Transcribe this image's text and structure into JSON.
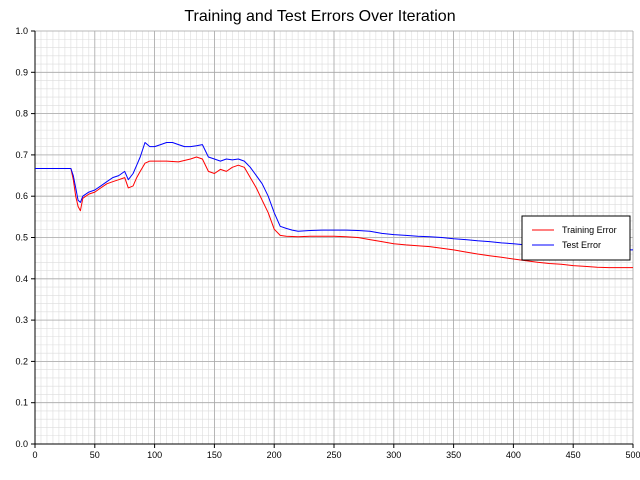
{
  "chart_data": {
    "type": "line",
    "title": "Training and Test Errors Over Iteration",
    "xlabel": "",
    "ylabel": "",
    "xlim": [
      0,
      500
    ],
    "ylim": [
      0.0,
      1.0
    ],
    "x_ticks": [
      "0",
      "50",
      "100",
      "150",
      "200",
      "250",
      "300",
      "350",
      "400",
      "450",
      "500"
    ],
    "y_ticks": [
      "0.0",
      "0.1",
      "0.2",
      "0.3",
      "0.4",
      "0.5",
      "0.6",
      "0.7",
      "0.8",
      "0.9",
      "1.0"
    ],
    "grid": true,
    "minor_grid": true,
    "legend_position": "right",
    "series": [
      {
        "name": "Training Error",
        "color": "#ff0000",
        "x": [
          0,
          10,
          20,
          25,
          30,
          32,
          34,
          36,
          38,
          40,
          45,
          50,
          55,
          60,
          65,
          70,
          75,
          78,
          82,
          85,
          88,
          92,
          96,
          100,
          110,
          120,
          130,
          135,
          140,
          145,
          150,
          155,
          160,
          165,
          170,
          175,
          180,
          185,
          190,
          195,
          200,
          205,
          210,
          220,
          230,
          240,
          250,
          260,
          270,
          280,
          290,
          300,
          310,
          320,
          330,
          340,
          350,
          360,
          370,
          380,
          390,
          400,
          410,
          420,
          430,
          440,
          450,
          460,
          470,
          480,
          490,
          500
        ],
        "values": [
          0.667,
          0.667,
          0.667,
          0.667,
          0.667,
          0.64,
          0.6,
          0.575,
          0.565,
          0.595,
          0.605,
          0.61,
          0.62,
          0.63,
          0.635,
          0.64,
          0.645,
          0.62,
          0.625,
          0.645,
          0.66,
          0.68,
          0.685,
          0.685,
          0.685,
          0.683,
          0.69,
          0.695,
          0.69,
          0.66,
          0.655,
          0.665,
          0.66,
          0.67,
          0.675,
          0.67,
          0.645,
          0.62,
          0.59,
          0.56,
          0.52,
          0.505,
          0.503,
          0.502,
          0.503,
          0.503,
          0.503,
          0.502,
          0.5,
          0.495,
          0.49,
          0.485,
          0.482,
          0.48,
          0.478,
          0.474,
          0.47,
          0.465,
          0.46,
          0.456,
          0.452,
          0.448,
          0.444,
          0.44,
          0.437,
          0.435,
          0.432,
          0.43,
          0.428,
          0.427,
          0.427,
          0.427
        ]
      },
      {
        "name": "Test Error",
        "color": "#0000ff",
        "x": [
          0,
          10,
          20,
          25,
          30,
          32,
          34,
          36,
          38,
          40,
          45,
          50,
          55,
          60,
          65,
          70,
          75,
          78,
          82,
          85,
          88,
          92,
          96,
          100,
          105,
          110,
          115,
          120,
          125,
          130,
          135,
          140,
          145,
          150,
          155,
          160,
          165,
          170,
          175,
          180,
          185,
          190,
          195,
          200,
          205,
          210,
          215,
          220,
          230,
          240,
          250,
          260,
          270,
          280,
          290,
          300,
          310,
          320,
          330,
          340,
          350,
          360,
          370,
          380,
          390,
          400,
          410,
          420,
          430,
          440,
          450,
          460,
          470,
          480,
          490,
          500
        ],
        "values": [
          0.667,
          0.667,
          0.667,
          0.667,
          0.667,
          0.65,
          0.62,
          0.59,
          0.585,
          0.6,
          0.61,
          0.615,
          0.625,
          0.635,
          0.645,
          0.65,
          0.66,
          0.64,
          0.655,
          0.675,
          0.695,
          0.73,
          0.72,
          0.72,
          0.725,
          0.73,
          0.73,
          0.725,
          0.72,
          0.72,
          0.722,
          0.725,
          0.695,
          0.69,
          0.685,
          0.69,
          0.688,
          0.69,
          0.685,
          0.67,
          0.65,
          0.63,
          0.6,
          0.56,
          0.527,
          0.522,
          0.518,
          0.515,
          0.517,
          0.518,
          0.518,
          0.518,
          0.517,
          0.515,
          0.51,
          0.507,
          0.505,
          0.503,
          0.502,
          0.5,
          0.497,
          0.495,
          0.492,
          0.49,
          0.487,
          0.485,
          0.482,
          0.48,
          0.478,
          0.477,
          0.476,
          0.475,
          0.473,
          0.472,
          0.47,
          0.47
        ]
      }
    ]
  }
}
